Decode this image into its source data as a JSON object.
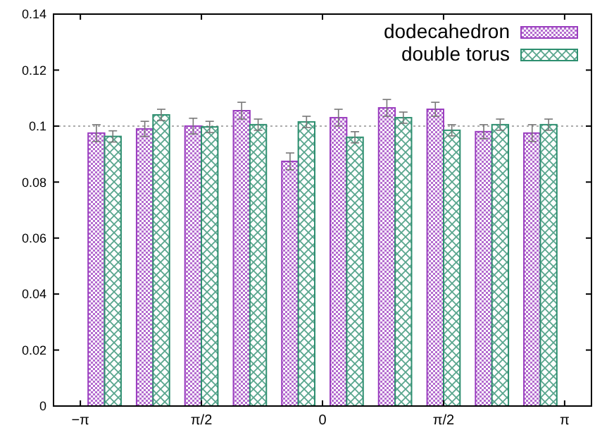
{
  "chart_data": {
    "type": "bar",
    "x": [
      -2.827,
      -2.199,
      -1.571,
      -0.942,
      -0.314,
      0.314,
      0.942,
      1.571,
      2.199,
      2.827
    ],
    "series": [
      {
        "name": "dodecahedron",
        "color": "#9a3cbf",
        "values": [
          0.0975,
          0.099,
          0.1,
          0.1055,
          0.0874,
          0.103,
          0.1065,
          0.106,
          0.098,
          0.0975
        ],
        "errors": [
          0.003,
          0.0027,
          0.0028,
          0.003,
          0.003,
          0.003,
          0.003,
          0.0025,
          0.0025,
          0.003
        ]
      },
      {
        "name": "double torus",
        "color": "#2e8f70",
        "values": [
          0.0963,
          0.104,
          0.0997,
          0.1005,
          0.1015,
          0.096,
          0.103,
          0.0985,
          0.1005,
          0.1005
        ],
        "errors": [
          0.002,
          0.002,
          0.002,
          0.002,
          0.002,
          0.002,
          0.002,
          0.002,
          0.002,
          0.002
        ]
      }
    ],
    "xlim": [
      -3.49,
      3.49
    ],
    "xticks": [
      {
        "value": -3.1416,
        "label": "−π"
      },
      {
        "value": -1.5708,
        "label": "π/2"
      },
      0,
      {
        "value": 1.5708,
        "label": "π/2"
      },
      {
        "value": 3.1416,
        "label": "π"
      }
    ],
    "ylim": [
      0,
      0.14
    ],
    "yticks": [
      0,
      0.02,
      0.04,
      0.06,
      0.08,
      0.1,
      0.12,
      0.14
    ],
    "ref_lines": [
      {
        "axis": "y",
        "value": 0.1,
        "color": "#a0a0a0",
        "line_style": "dotted"
      }
    ],
    "legend": "top right",
    "grid": false
  }
}
